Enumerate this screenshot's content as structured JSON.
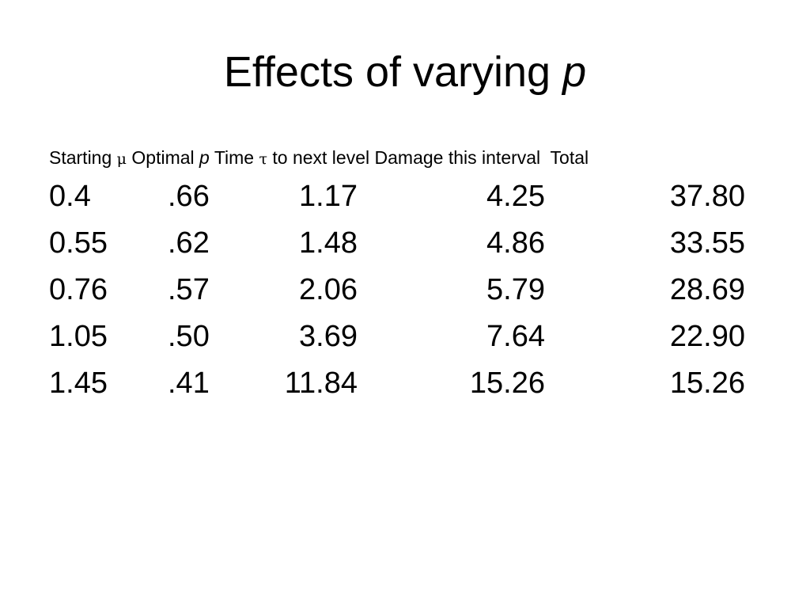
{
  "slide": {
    "title_prefix": "Effects of varying ",
    "title_var": "p"
  },
  "table": {
    "header": {
      "col0": "Starting ",
      "col0_symbol": "μ",
      "col1": " Optimal ",
      "col1_var": "p",
      "col2": " Time ",
      "col2_symbol": "τ",
      "col2_rest": " to next level",
      "col3": " Damage this interval",
      "col4": "  Total"
    },
    "rows": [
      {
        "starting_mu": "0.4",
        "optimal_p": ".66",
        "time_tau": "1.17",
        "damage": "4.25",
        "total": "37.80"
      },
      {
        "starting_mu": "0.55",
        "optimal_p": ".62",
        "time_tau": "1.48",
        "damage": "4.86",
        "total": "33.55"
      },
      {
        "starting_mu": "0.76",
        "optimal_p": ".57",
        "time_tau": "2.06",
        "damage": "5.79",
        "total": "28.69"
      },
      {
        "starting_mu": "1.05",
        "optimal_p": ".50",
        "time_tau": "3.69",
        "damage": "7.64",
        "total": "22.90"
      },
      {
        "starting_mu": "1.45",
        "optimal_p": ".41",
        "time_tau": "11.84",
        "damage": "15.26",
        "total": "15.26"
      }
    ]
  }
}
